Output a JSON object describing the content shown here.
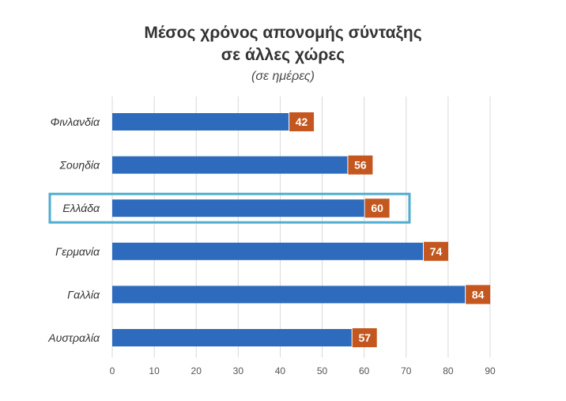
{
  "chart_data": {
    "type": "bar",
    "orientation": "horizontal",
    "title": [
      "Μέσος χρόνος απονομής σύνταξης",
      "σε άλλες χώρες"
    ],
    "subtitle": "(σε ημέρες)",
    "categories": [
      "Φινλανδία",
      "Σουηδία",
      "Ελλάδα",
      "Γερμανία",
      "Γαλλία",
      "Αυστραλία"
    ],
    "values": [
      42,
      56,
      60,
      74,
      84,
      57
    ],
    "data_labels": [
      "42",
      "56",
      "60",
      "74",
      "84",
      "57"
    ],
    "highlighted_category": "Ελλάδα",
    "xlim": [
      0,
      90
    ],
    "x_ticks": [
      0,
      10,
      20,
      30,
      40,
      50,
      60,
      70,
      80,
      90
    ],
    "grid": "vertical",
    "legend": "none",
    "colors": {
      "bar": "#2e6bbd",
      "label_bg": "#c4571f",
      "highlight_box": "#4faed0",
      "grid": "#d9d9d9"
    }
  }
}
